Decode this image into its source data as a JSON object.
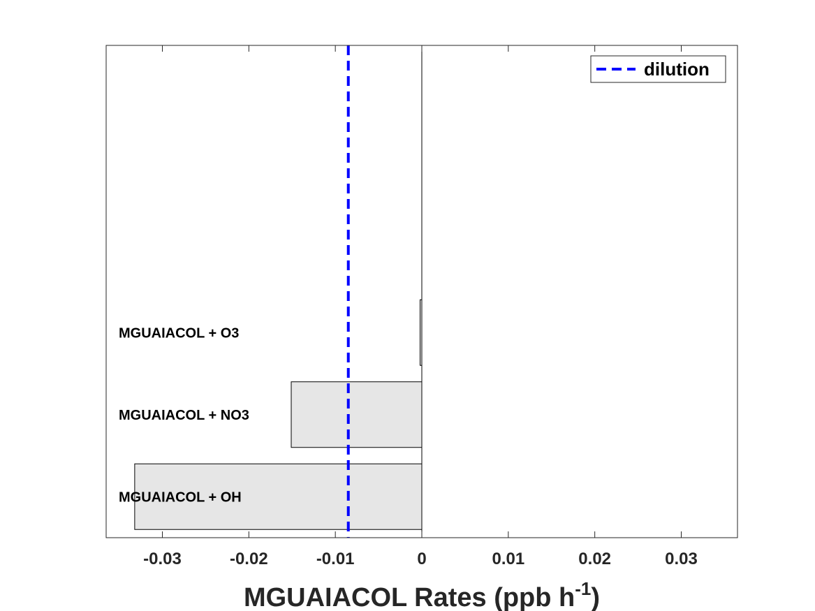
{
  "chart_data": {
    "type": "bar",
    "orientation": "horizontal",
    "categories": [
      "MGUAIACOL + OH",
      "MGUAIACOL + NO3",
      "MGUAIACOL + O3"
    ],
    "values": [
      -0.0332,
      -0.0151,
      -0.0002
    ],
    "category_slots": 6,
    "xlim": [
      -0.0365,
      0.0365
    ],
    "xticks": [
      -0.03,
      -0.02,
      -0.01,
      0,
      0.01,
      0.02,
      0.03
    ],
    "xtick_labels": [
      "-0.03",
      "-0.02",
      "-0.01",
      "0",
      "0.01",
      "0.02",
      "0.03"
    ],
    "xlabel": {
      "main": "MGUAIACOL Rates (ppb h",
      "superscript": "-1",
      "close": ")"
    },
    "reference_lines": [
      {
        "name": "dilution",
        "x": -0.0085,
        "color": "#0000ff",
        "style": "dashed"
      }
    ],
    "legend": {
      "position": "top-right",
      "entries": [
        "dilution"
      ]
    },
    "bar_color": "#e6e6e6",
    "bar_edge_color": "#000000"
  }
}
